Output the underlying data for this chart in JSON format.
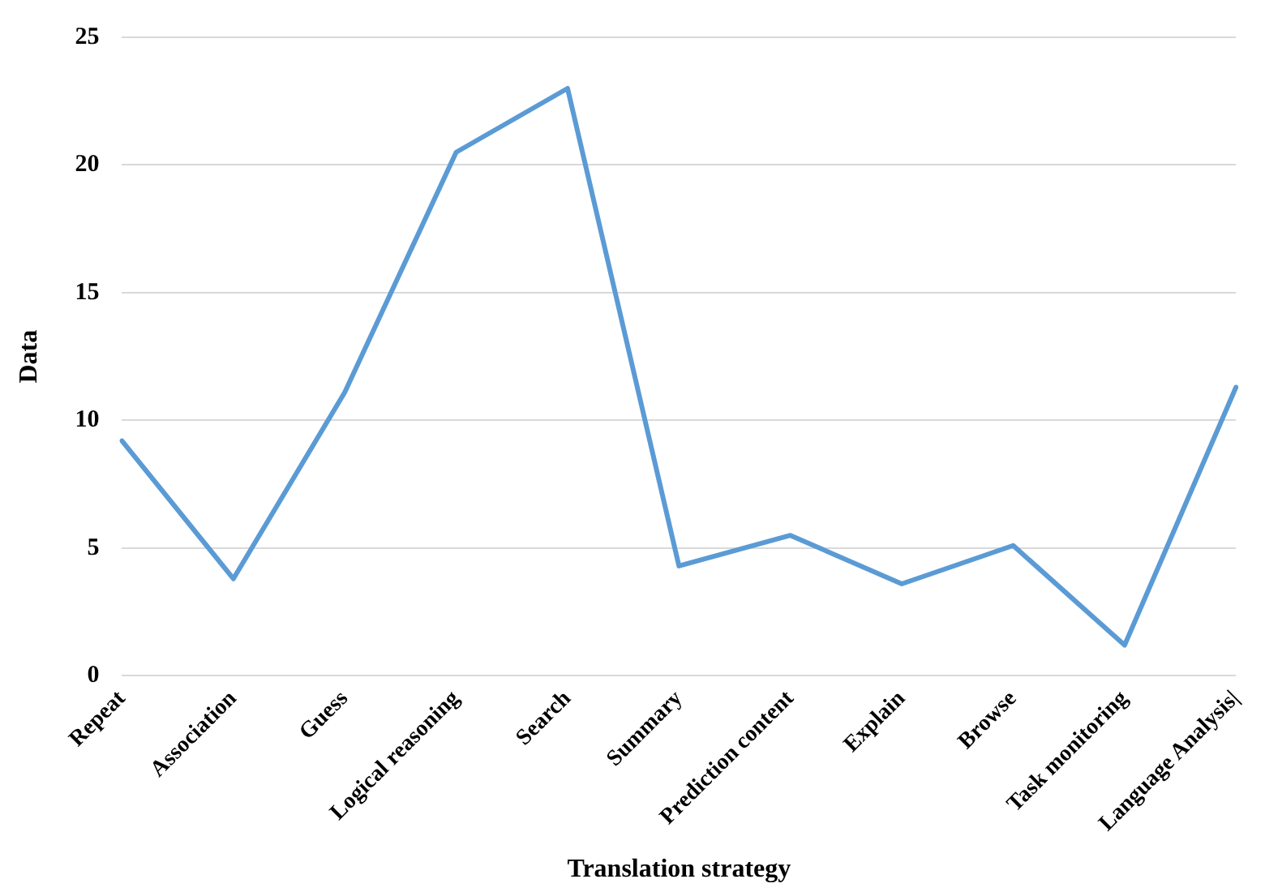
{
  "chart_data": {
    "type": "line",
    "xlabel": "Translation strategy",
    "ylabel": "Data",
    "categories": [
      "Repeat",
      "Association",
      "Guess",
      "Logical reasoning",
      "Search",
      "Summary",
      "Prediction content",
      "Explain",
      "Browse",
      "Task monitoring",
      "Language Analysis|"
    ],
    "series": [
      {
        "color": "#5b9bd5",
        "values": [
          9.2,
          3.8,
          11.1,
          20.5,
          23.0,
          4.3,
          5.5,
          3.6,
          5.1,
          1.2,
          11.3
        ]
      }
    ],
    "ylim": [
      0,
      25
    ],
    "yticks": [
      0,
      5,
      10,
      15,
      20,
      25
    ],
    "grid": "y",
    "legend": false,
    "marker": "none",
    "line_style": "solid"
  }
}
